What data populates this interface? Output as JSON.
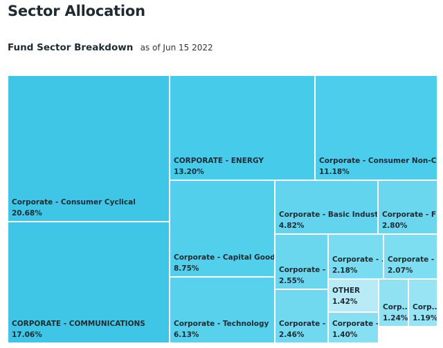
{
  "header": {
    "title": "Sector Allocation",
    "subtitle": "Fund Sector Breakdown",
    "as_of": "as of Jun 15 2022"
  },
  "chart_data": {
    "type": "treemap",
    "title": "Fund Sector Breakdown",
    "unit": "%",
    "items": [
      {
        "label": "Corporate - Consumer Cyclical",
        "value": 20.68,
        "display": "20.68%",
        "color": "#3fc6e6"
      },
      {
        "label": "CORPORATE - COMMUNICATIONS",
        "value": 17.06,
        "display": "17.06%",
        "color": "#3fc6e6"
      },
      {
        "label": "CORPORATE - ENERGY",
        "value": 13.2,
        "display": "13.20%",
        "color": "#46cbea"
      },
      {
        "label": "Corporate - Consumer Non-Cy...",
        "value": 11.18,
        "display": "11.18%",
        "color": "#4ccdeb"
      },
      {
        "label": "Corporate - Capital Goods",
        "value": 8.75,
        "display": "8.75%",
        "color": "#52cfeb"
      },
      {
        "label": "Corporate - Technology",
        "value": 6.13,
        "display": "6.13%",
        "color": "#58d1ec"
      },
      {
        "label": "Corporate - Basic Industry",
        "value": 4.82,
        "display": "4.82%",
        "color": "#62d4ee"
      },
      {
        "label": "Corporate - Fi...",
        "value": 2.8,
        "display": "2.80%",
        "color": "#6ad7ef"
      },
      {
        "label": "Corporate - ...",
        "value": 2.55,
        "display": "2.55%",
        "color": "#6ad7ef"
      },
      {
        "label": "Corporate - ...",
        "value": 2.46,
        "display": "2.46%",
        "color": "#70d9f0"
      },
      {
        "label": "Corporate - ...",
        "value": 2.18,
        "display": "2.18%",
        "color": "#7adcf1"
      },
      {
        "label": "Corporate - ...",
        "value": 2.07,
        "display": "2.07%",
        "color": "#7edef1"
      },
      {
        "label": "OTHER",
        "value": 1.42,
        "display": "1.42%",
        "color": "#b9ebf6"
      },
      {
        "label": "Corporate - ...",
        "value": 1.4,
        "display": "1.40%",
        "color": "#86e0f2"
      },
      {
        "label": "Corp...",
        "value": 1.24,
        "display": "1.24%",
        "color": "#90e2f3"
      },
      {
        "label": "Corp...",
        "value": 1.19,
        "display": "1.19%",
        "color": "#96e4f4"
      }
    ]
  }
}
